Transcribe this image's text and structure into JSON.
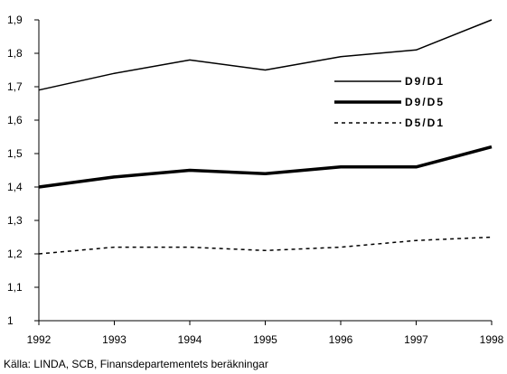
{
  "chart_data": {
    "type": "line",
    "x": [
      "1992",
      "1993",
      "1994",
      "1995",
      "1996",
      "1997",
      "1998"
    ],
    "series": [
      {
        "name": "D9/D1",
        "values": [
          1.69,
          1.74,
          1.78,
          1.75,
          1.79,
          1.81,
          1.9
        ],
        "style": "thin-solid",
        "color": "#000000"
      },
      {
        "name": "D9/D5",
        "values": [
          1.4,
          1.43,
          1.45,
          1.44,
          1.46,
          1.46,
          1.52
        ],
        "style": "thick-solid",
        "color": "#000000"
      },
      {
        "name": "D5/D1",
        "values": [
          1.2,
          1.22,
          1.22,
          1.21,
          1.22,
          1.24,
          1.25
        ],
        "style": "dashed",
        "color": "#000000"
      }
    ],
    "ylim": [
      1.0,
      1.9
    ],
    "yticks": [
      1.0,
      1.1,
      1.2,
      1.3,
      1.4,
      1.5,
      1.6,
      1.7,
      1.8,
      1.9
    ],
    "ytick_labels": [
      "1",
      "1,1",
      "1,2",
      "1,3",
      "1,4",
      "1,5",
      "1,6",
      "1,7",
      "1,8",
      "1,9"
    ],
    "xtick_labels": [
      "1992",
      "1993",
      "1994",
      "1995",
      "1996",
      "1997",
      "1998"
    ],
    "grid": false,
    "legend_position": "top-right"
  },
  "source": "Källa: LINDA, SCB, Finansdepartementets beräkningar"
}
